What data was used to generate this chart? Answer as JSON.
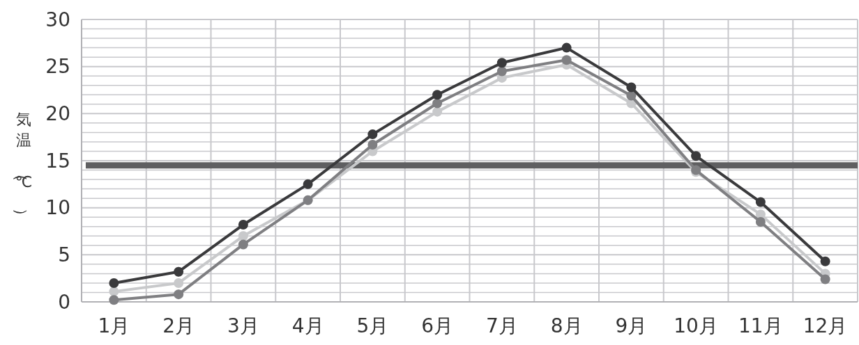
{
  "chart_data": {
    "type": "line",
    "ylabel": "気温（℃）",
    "categories": [
      "1月",
      "2月",
      "3月",
      "4月",
      "5月",
      "6月",
      "7月",
      "8月",
      "9月",
      "10月",
      "11月",
      "12月"
    ],
    "series": [
      {
        "color": "#c8c9cb",
        "values": [
          1.1,
          2.0,
          7.0,
          10.8,
          16.0,
          20.2,
          23.8,
          25.2,
          21.1,
          13.8,
          9.3,
          3.0
        ]
      },
      {
        "color": "#7f7f82",
        "values": [
          0.2,
          0.8,
          6.1,
          10.8,
          16.7,
          21.1,
          24.5,
          25.7,
          21.9,
          14.0,
          8.5,
          2.4
        ]
      },
      {
        "color": "#3a3a3c",
        "values": [
          2.0,
          3.2,
          8.2,
          12.5,
          17.8,
          22.0,
          25.4,
          27.0,
          22.8,
          15.5,
          10.6,
          4.3
        ]
      }
    ],
    "ylim": [
      0,
      30
    ],
    "yticks": [
      0,
      {
        "value": 1,
        "label": null
      },
      {
        "value": 2,
        "label": null
      },
      {
        "value": 3,
        "label": null
      },
      {
        "value": 4,
        "label": null
      },
      5,
      {
        "value": 6,
        "label": null
      },
      {
        "value": 7,
        "label": null
      },
      {
        "value": 8,
        "label": null
      },
      {
        "value": 9,
        "label": null
      },
      10,
      {
        "value": 11,
        "label": null
      },
      {
        "value": 12,
        "label": null
      },
      {
        "value": 13,
        "label": null
      },
      {
        "value": 14,
        "label": null
      },
      15,
      {
        "value": 16,
        "label": null
      },
      {
        "value": 17,
        "label": null
      },
      {
        "value": 18,
        "label": null
      },
      {
        "value": 19,
        "label": null
      },
      20,
      {
        "value": 21,
        "label": null
      },
      {
        "value": 22,
        "label": null
      },
      {
        "value": 23,
        "label": null
      },
      {
        "value": 24,
        "label": null
      },
      25,
      {
        "value": 26,
        "label": null
      },
      {
        "value": 27,
        "label": null
      },
      {
        "value": 28,
        "label": null
      },
      {
        "value": 29,
        "label": null
      },
      30
    ],
    "ref_lines": [
      {
        "axis": "y",
        "value": 14.5,
        "color": "#5f5f61"
      }
    ],
    "grid": true,
    "marker": "circle",
    "line_style": "solid"
  }
}
